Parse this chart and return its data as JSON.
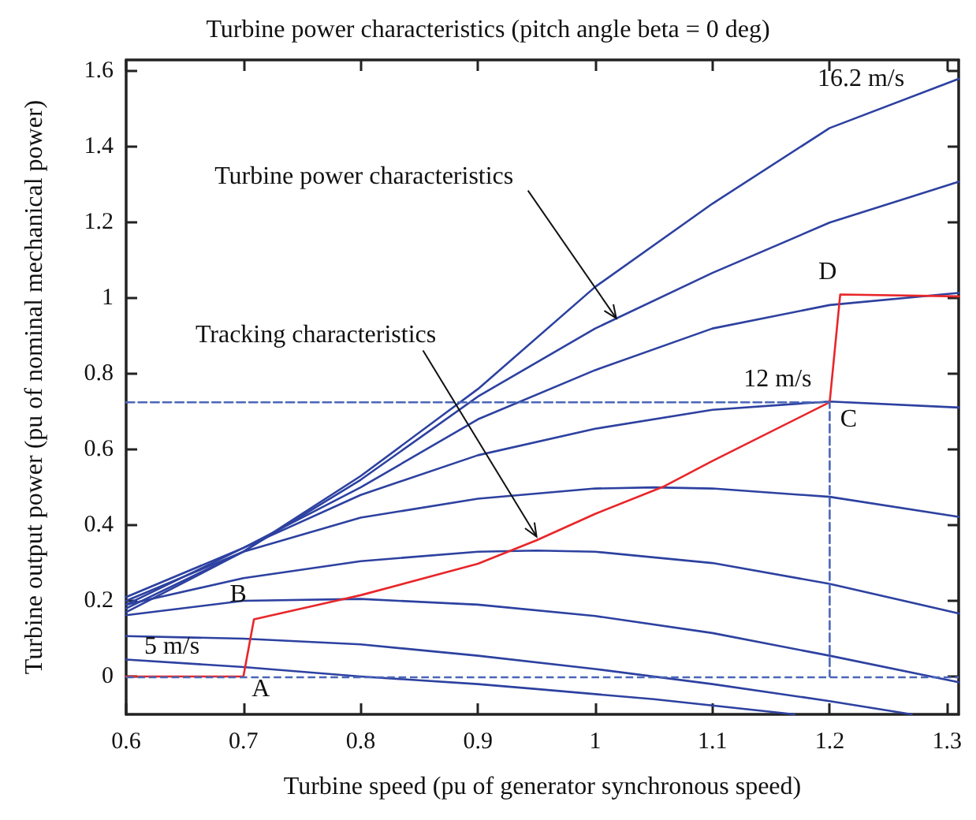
{
  "chart_data": {
    "type": "line",
    "title": "Turbine power characteristics (pitch angle beta = 0 deg)",
    "xlabel": "Turbine speed (pu of generator synchronous speed)",
    "ylabel": "Turbine output power (pu of nominal mechanical power)",
    "xlim": [
      0.6,
      1.31
    ],
    "xticks": [
      0.6,
      0.7,
      0.8,
      0.9,
      1,
      1.1,
      1.2,
      1.3
    ],
    "ylim": [
      -0.1,
      1.63
    ],
    "yticks": [
      0,
      0.2,
      0.4,
      0.6,
      0.8,
      1,
      1.2,
      1.4,
      1.6
    ],
    "grid": false,
    "marker": "none",
    "line_style": "solid",
    "series": [
      {
        "color": "#2d41a0",
        "x": [
          0.6,
          0.7,
          0.8,
          0.9,
          0.95,
          1.05,
          1.17
        ],
        "values": [
          0.045,
          0.025,
          0.0,
          -0.02,
          -0.033,
          -0.06,
          -0.1
        ]
      },
      {
        "color": "#2d41a0",
        "x": [
          0.6,
          0.7,
          0.8,
          0.9,
          1.0,
          1.1,
          1.2,
          1.27
        ],
        "values": [
          0.107,
          0.1,
          0.085,
          0.055,
          0.02,
          -0.02,
          -0.065,
          -0.1
        ]
      },
      {
        "color": "#2d41a0",
        "x": [
          0.6,
          0.7,
          0.8,
          0.9,
          1.0,
          1.1,
          1.2,
          1.31
        ],
        "values": [
          0.162,
          0.2,
          0.205,
          0.19,
          0.16,
          0.115,
          0.055,
          -0.015
        ]
      },
      {
        "color": "#2d41a0",
        "x": [
          0.6,
          0.7,
          0.8,
          0.9,
          0.95,
          1.0,
          1.1,
          1.2,
          1.31
        ],
        "values": [
          0.19,
          0.26,
          0.305,
          0.33,
          0.333,
          0.33,
          0.3,
          0.245,
          0.167
        ]
      },
      {
        "color": "#2d41a0",
        "x": [
          0.6,
          0.7,
          0.8,
          0.9,
          1.0,
          1.05,
          1.1,
          1.2,
          1.31
        ],
        "values": [
          0.2,
          0.33,
          0.42,
          0.47,
          0.497,
          0.5,
          0.497,
          0.475,
          0.422
        ]
      },
      {
        "color": "#2d41a0",
        "x": [
          0.6,
          0.7,
          0.8,
          0.9,
          1.0,
          1.1,
          1.2,
          1.31
        ],
        "values": [
          0.21,
          0.34,
          0.48,
          0.585,
          0.655,
          0.705,
          0.727,
          0.711
        ]
      },
      {
        "color": "#2d41a0",
        "x": [
          0.6,
          0.7,
          0.8,
          0.9,
          1.0,
          1.1,
          1.2,
          1.31
        ],
        "values": [
          0.19,
          0.34,
          0.5,
          0.68,
          0.81,
          0.92,
          0.982,
          1.014
        ]
      },
      {
        "color": "#2d41a0",
        "x": [
          0.6,
          0.7,
          0.8,
          0.9,
          1.0,
          1.1,
          1.2,
          1.31
        ],
        "values": [
          0.17,
          0.33,
          0.52,
          0.74,
          0.92,
          1.067,
          1.2,
          1.308
        ]
      },
      {
        "color": "#2d41a0",
        "x": [
          0.6,
          0.7,
          0.8,
          0.9,
          1.0,
          1.1,
          1.2,
          1.31
        ],
        "values": [
          0.18,
          0.33,
          0.53,
          0.76,
          1.03,
          1.25,
          1.45,
          1.58
        ]
      },
      {
        "color": "#e8262a",
        "x": [
          0.6,
          0.7,
          0.709,
          0.8,
          0.9,
          0.95,
          1.0,
          1.059,
          1.1,
          1.2,
          1.209,
          1.31
        ],
        "values": [
          0,
          0,
          0.151,
          0.215,
          0.298,
          0.36,
          0.43,
          0.503,
          0.57,
          0.725,
          1.01,
          1.005
        ]
      },
      {
        "color": "#4a66b8",
        "line_style": "dashed",
        "x": [
          0.6,
          1.2,
          1.2
        ],
        "values": [
          0.725,
          0.725,
          0
        ]
      }
    ],
    "ref_lines": [
      {
        "axis": "y",
        "value": 0,
        "color": "#4a66b8",
        "line_style": "dashed"
      }
    ],
    "annotations": [
      {
        "text": "Turbine power characteristics",
        "x": 1.018,
        "y": 0.947
      },
      {
        "text": "Tracking characteristics",
        "x": 0.95,
        "y": 0.37
      },
      {
        "text": "16.2 m/s",
        "x": 1.31,
        "y": 1.58
      },
      {
        "text": "12 m/s",
        "x": 1.2,
        "y": 0.727
      },
      {
        "text": "5 m/s",
        "x": 0.6,
        "y": 0.045
      },
      {
        "text": "A",
        "x": 0.7,
        "y": 0
      },
      {
        "text": "B",
        "x": 0.709,
        "y": 0.151
      },
      {
        "text": "C",
        "x": 1.2,
        "y": 0.725
      },
      {
        "text": "D",
        "x": 1.209,
        "y": 1.01
      }
    ]
  }
}
